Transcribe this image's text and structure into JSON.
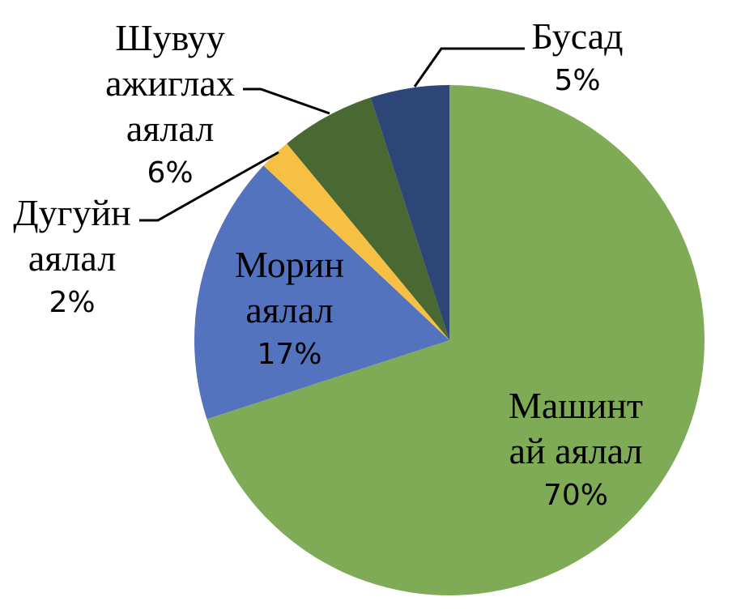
{
  "chart_data": {
    "type": "pie",
    "title": "",
    "start_angle_deg": 0,
    "direction": "clockwise",
    "categories": [
      "Машинтай аялал",
      "Морин аялал",
      "Дугуйн аялал",
      "Шувуу ажиглах аялал",
      "Бусад"
    ],
    "values": [
      70,
      17,
      2,
      6,
      5
    ],
    "value_labels": [
      "70%",
      "17%",
      "2%",
      "6%",
      "5%"
    ],
    "colors": [
      "#7FAB57",
      "#5473BE",
      "#F5C043",
      "#4A6932",
      "#2E4677"
    ],
    "legend": "none"
  },
  "labels": {
    "mashintai": {
      "line1": "Машинт",
      "line2": "ай аялал",
      "pct": "70%"
    },
    "morin": {
      "line1": "Морин",
      "line2": "аялал",
      "pct": "17%"
    },
    "dugui": {
      "line1": "Дугуйн",
      "line2": "аялал",
      "pct": "2%"
    },
    "shuvuu": {
      "line1": "Шувуу",
      "line2": "ажиглах",
      "line3": "аялал",
      "pct": "6%"
    },
    "busad": {
      "line1": "Бусад",
      "pct": "5%"
    }
  }
}
